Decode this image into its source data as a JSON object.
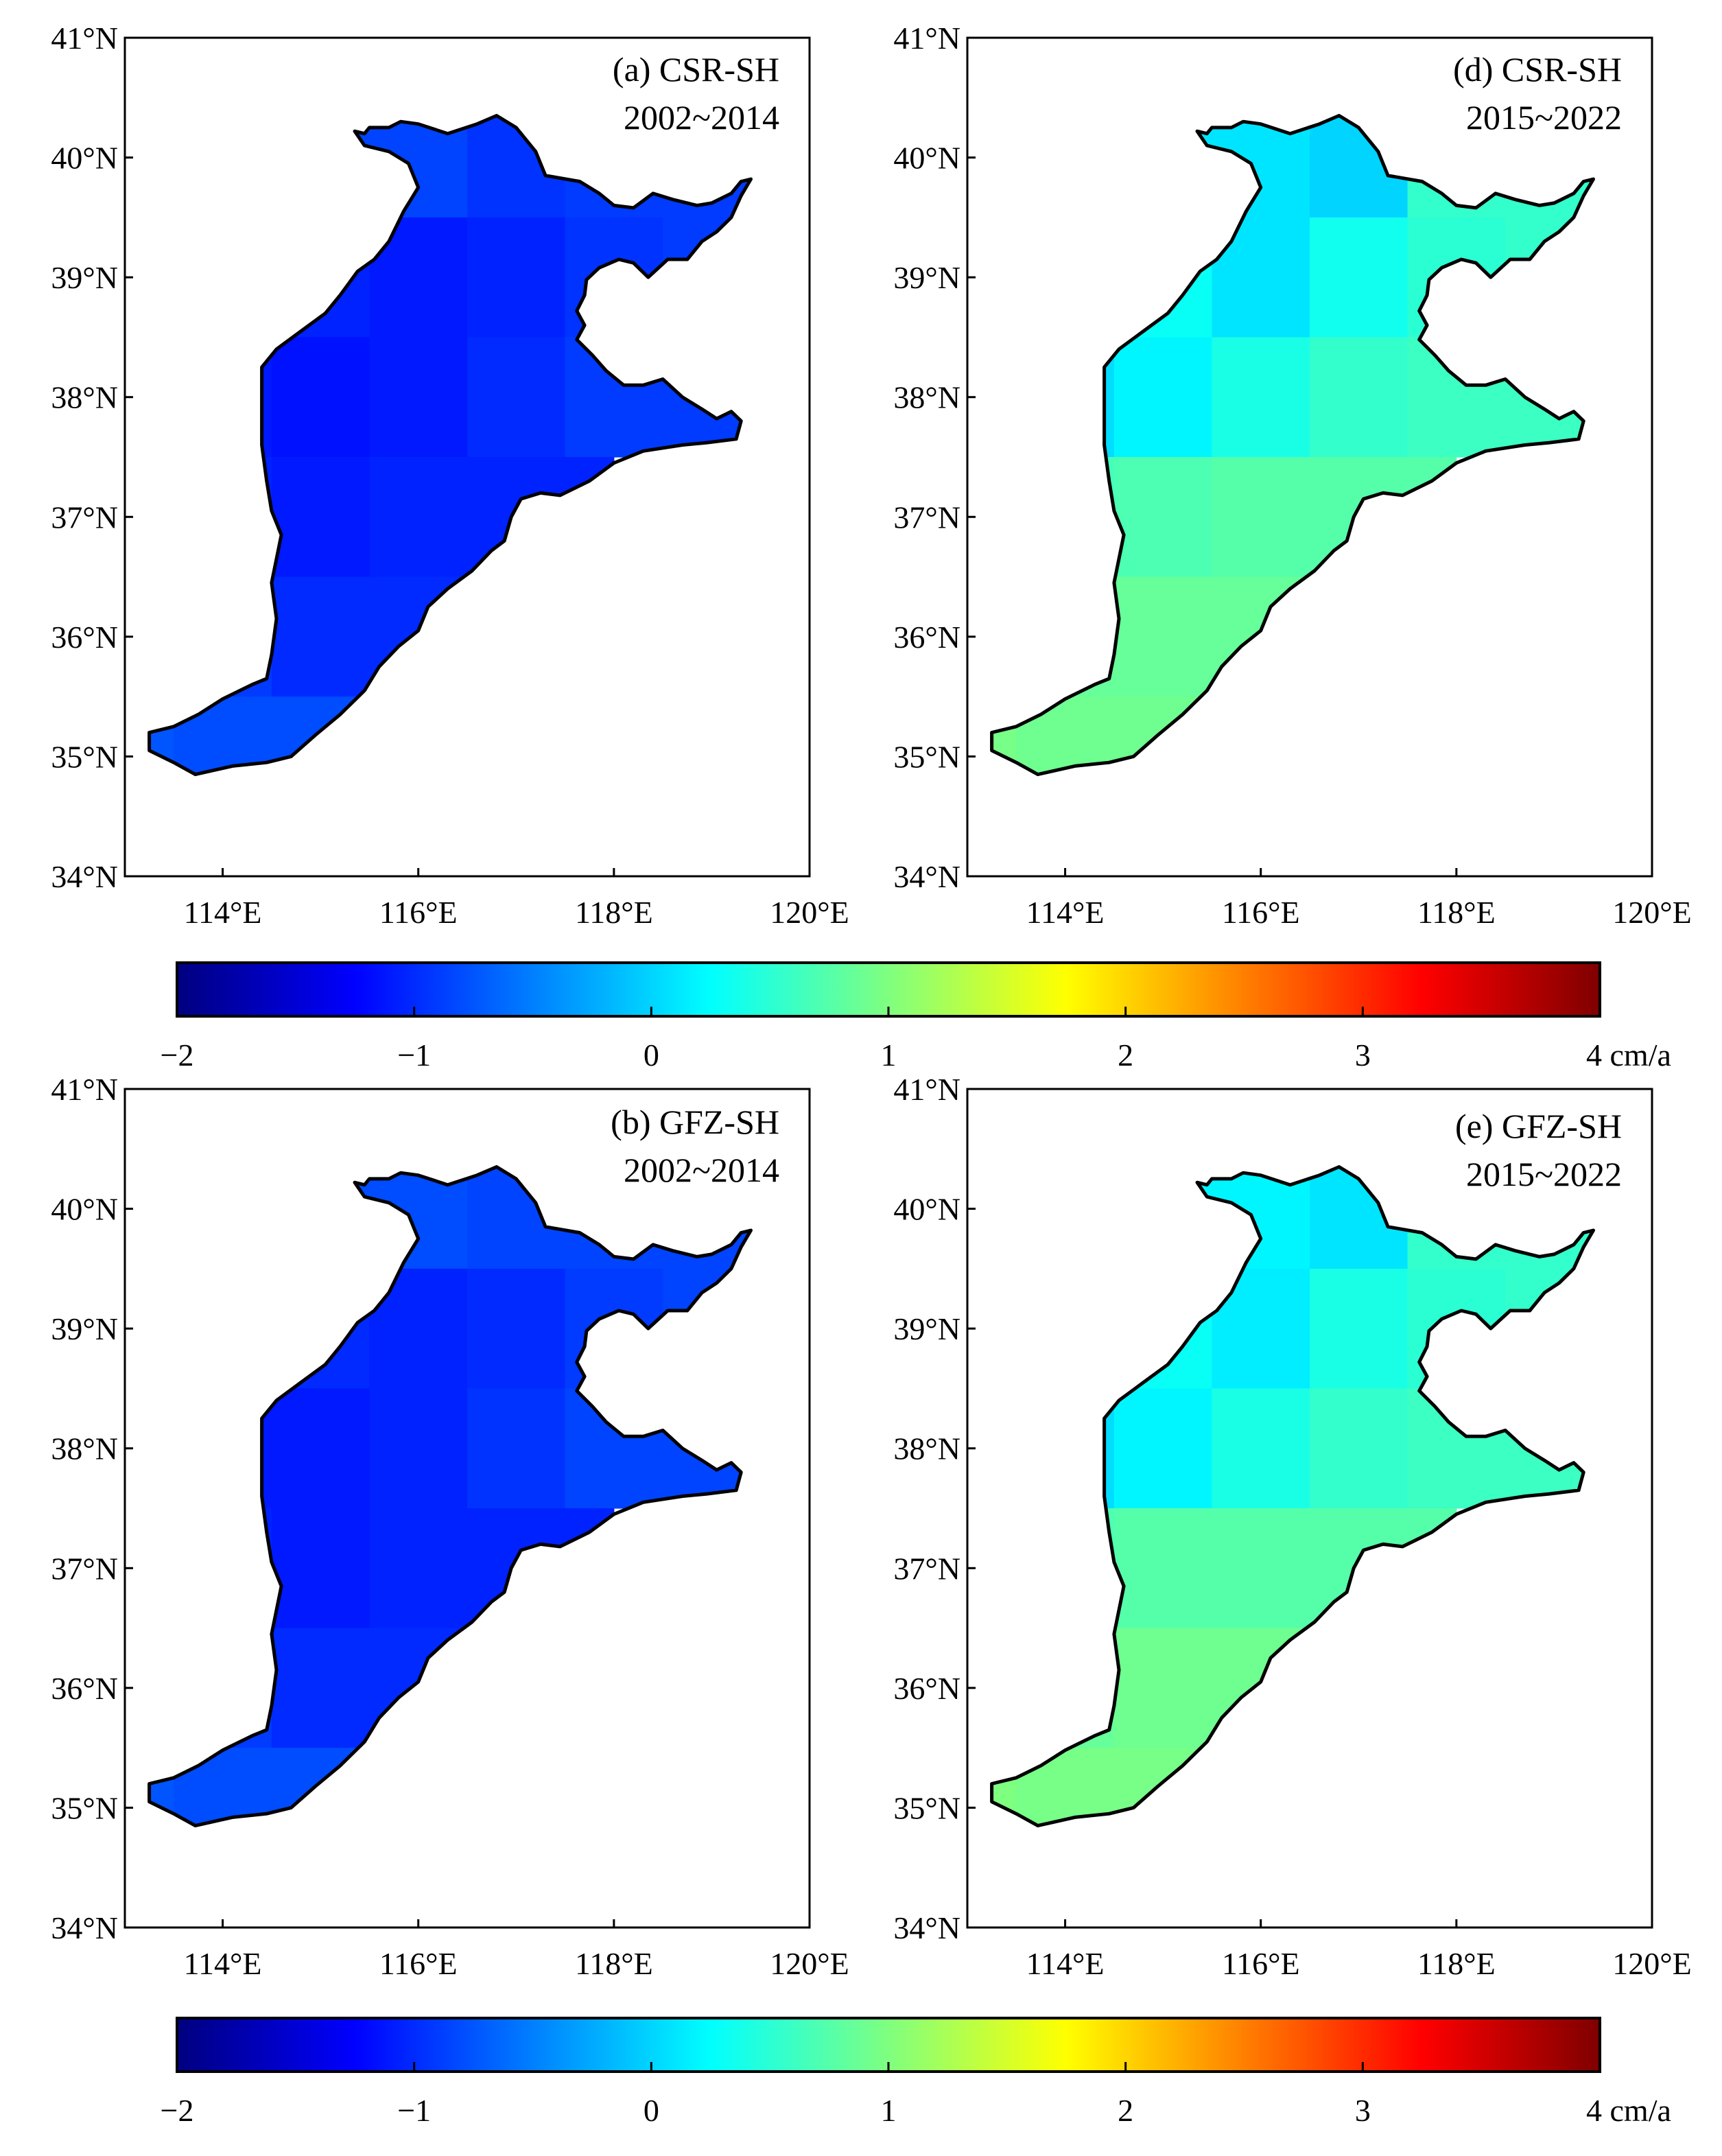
{
  "figure": {
    "colormap": [
      "#00007f",
      "#0000ff",
      "#007fff",
      "#00ffff",
      "#7fff7f",
      "#ffff00",
      "#ff7f00",
      "#ff0000",
      "#7f0000"
    ],
    "lat_ticks": [
      "34°N",
      "35°N",
      "36°N",
      "37°N",
      "38°N",
      "39°N",
      "40°N",
      "41°N"
    ],
    "lon_ticks": [
      "114°E",
      "116°E",
      "118°E",
      "120°E"
    ],
    "panels": [
      {
        "id": "a",
        "title": "(a) CSR-SH",
        "period": "2002~2014",
        "grid_values": [
          [
            -0.85,
            -0.95,
            -0.9
          ],
          [
            -1.05,
            -1.1,
            -1.05,
            -0.95,
            -0.9
          ],
          [
            -1.1,
            -1.15,
            -1.1,
            -1.0,
            -0.9
          ],
          [
            -1.05,
            -1.1,
            -1.05
          ],
          [
            -0.9,
            -1.0
          ],
          [
            -0.75,
            -0.8
          ]
        ]
      },
      {
        "id": "d",
        "title": "(d) CSR-SH",
        "period": "2015~2022",
        "grid_values": [
          [
            0.1,
            0.0,
            0.55
          ],
          [
            0.3,
            0.1,
            0.35,
            0.5,
            0.55
          ],
          [
            0.05,
            0.2,
            0.4,
            0.55,
            0.6
          ],
          [
            0.65,
            0.7,
            0.75
          ],
          [
            0.85,
            0.85
          ],
          [
            0.95,
            0.9
          ]
        ]
      },
      {
        "id": "b",
        "title": "(b) GFZ-SH",
        "period": "2002~2014",
        "grid_values": [
          [
            -0.8,
            -0.85,
            -0.85
          ],
          [
            -1.0,
            -1.05,
            -1.0,
            -0.9,
            -0.85
          ],
          [
            -1.1,
            -1.1,
            -1.05,
            -0.95,
            -0.85
          ],
          [
            -1.05,
            -1.1,
            -1.05
          ],
          [
            -0.9,
            -1.0
          ],
          [
            -0.75,
            -0.8
          ]
        ]
      },
      {
        "id": "e",
        "title": "(e) GFZ-SH",
        "period": "2015~2022",
        "grid_values": [
          [
            0.2,
            0.1,
            0.55
          ],
          [
            0.3,
            0.15,
            0.4,
            0.5,
            0.55
          ],
          [
            0.05,
            0.2,
            0.4,
            0.55,
            0.6
          ],
          [
            0.7,
            0.75,
            0.75
          ],
          [
            0.85,
            0.9
          ],
          [
            1.0,
            0.95
          ]
        ]
      }
    ],
    "colorbars": [
      {
        "id": "top",
        "range": [
          -2,
          4
        ],
        "ticks": [
          "−2",
          "−1",
          "0",
          "1",
          "2",
          "3",
          "4 cm/a"
        ]
      },
      {
        "id": "bottom",
        "range": [
          -2,
          4
        ],
        "ticks": [
          "−2",
          "−1",
          "0",
          "1",
          "2",
          "3",
          "4 cm/a"
        ]
      }
    ]
  }
}
